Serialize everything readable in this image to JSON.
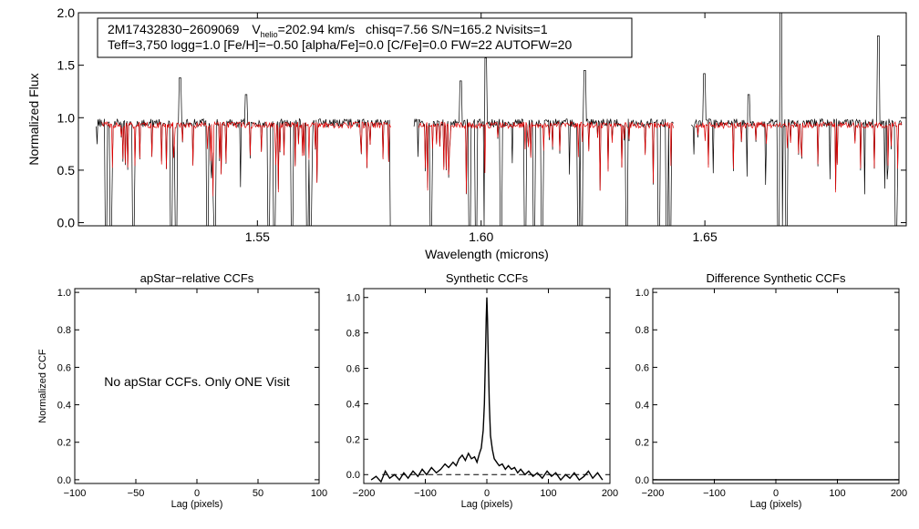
{
  "colors": {
    "axis": "#000000",
    "observed": "#000000",
    "model": "#e00000",
    "reference": "#000000"
  },
  "chart_data": [
    {
      "id": "spectrum",
      "type": "line",
      "title": "",
      "xlabel": "Wavelength (microns)",
      "ylabel": "Normalized Flux",
      "xlim": [
        1.51,
        1.695
      ],
      "ylim": [
        -0.03,
        2.0
      ],
      "xticks": [
        1.55,
        1.6,
        1.65
      ],
      "xtick_labels": [
        "1.55",
        "1.60",
        "1.65"
      ],
      "yticks": [
        0.0,
        0.5,
        1.0,
        1.5,
        2.0
      ],
      "ytick_labels": [
        "0.0",
        "0.5",
        "1.0",
        "1.5",
        "2.0"
      ],
      "info": {
        "star_id": "2M17432830−2609069",
        "vhelio_label": "V",
        "vhelio_sub": "helio",
        "vhelio_value": "=202.94 km/s",
        "stats": "chisq=7.56  S/N=165.2  Nvisits=1",
        "params": "Teff=3,750 logg=1.0 [Fe/H]=−0.50 [alpha/Fe]=0.0 [C/Fe]=0.0 FW=22 AUTOFW=20"
      },
      "chips": [
        [
          1.514,
          1.58
        ],
        [
          1.585,
          1.643
        ],
        [
          1.647,
          1.694
        ]
      ],
      "series": [
        {
          "name": "apStar observed",
          "continuum": 0.95,
          "emission": [
            [
              1.5328,
              1.38
            ],
            [
              1.5475,
              1.22
            ],
            [
              1.5955,
              1.35
            ],
            [
              1.601,
              1.57
            ],
            [
              1.6232,
              1.45
            ],
            [
              1.6498,
              1.42
            ],
            [
              1.6598,
              1.22
            ],
            [
              1.667,
              2.0
            ],
            [
              1.6888,
              1.78
            ]
          ],
          "deep_absorption": [
            1.5135,
            1.5162,
            1.5172,
            1.5222,
            1.5308,
            1.5318,
            1.5388,
            1.5405,
            1.5525,
            1.5538,
            1.5578,
            1.5612,
            1.5618,
            1.5798,
            1.5888,
            1.5975,
            1.5988,
            1.6008,
            1.6045,
            1.6098,
            1.6118,
            1.6136,
            1.6218,
            1.6225,
            1.6232,
            1.6325,
            1.6398,
            1.6415,
            1.6422,
            1.6665,
            1.6672,
            1.6682,
            1.6928
          ]
        },
        {
          "name": "synthetic model",
          "continuum": 0.93
        }
      ]
    },
    {
      "id": "apstar-ccf",
      "type": "line",
      "title": "apStar−relative CCFs",
      "xlabel": "Lag (pixels)",
      "ylabel": "Normalized CCF",
      "xlim": [
        -100,
        100
      ],
      "ylim": [
        -0.02,
        1.02
      ],
      "xticks": [
        -100,
        -50,
        0,
        50,
        100
      ],
      "xtick_labels": [
        "−100",
        "−50",
        "0",
        "50",
        "100"
      ],
      "yticks": [
        0.0,
        0.2,
        0.4,
        0.6,
        0.8,
        1.0
      ],
      "ytick_labels": [
        "0.0",
        "0.2",
        "0.4",
        "0.6",
        "0.8",
        "1.0"
      ],
      "annotation": "No apStar CCFs.  Only ONE Visit",
      "series": []
    },
    {
      "id": "synthetic-ccf",
      "type": "line",
      "title": "Synthetic CCFs",
      "xlabel": "Lag (pixels)",
      "ylabel": "",
      "xlim": [
        -200,
        200
      ],
      "ylim": [
        -0.05,
        1.05
      ],
      "xticks": [
        -200,
        -100,
        0,
        100,
        200
      ],
      "xtick_labels": [
        "−200",
        "−100",
        "0",
        "100",
        "200"
      ],
      "yticks": [
        0.0,
        0.2,
        0.4,
        0.6,
        0.8,
        1.0
      ],
      "ytick_labels": [
        "0.0",
        "0.2",
        "0.4",
        "0.6",
        "0.8",
        "1.0"
      ],
      "reference_line": {
        "y": 0.0,
        "from": -170,
        "to": 170,
        "style": "dashed"
      },
      "series": [
        {
          "name": "synthetic CCF",
          "x": [
            -188,
            -180,
            -172,
            -165,
            -158,
            -150,
            -142,
            -135,
            -128,
            -120,
            -112,
            -105,
            -98,
            -90,
            -82,
            -75,
            -68,
            -62,
            -55,
            -50,
            -45,
            -40,
            -35,
            -30,
            -25,
            -20,
            -16,
            -12,
            -9,
            -6,
            -4,
            -2,
            -1,
            0,
            1,
            2,
            4,
            6,
            9,
            12,
            16,
            20,
            25,
            30,
            35,
            40,
            45,
            50,
            55,
            62,
            68,
            75,
            82,
            90,
            98,
            105,
            112,
            120,
            128,
            135,
            142,
            150,
            158,
            165,
            172,
            180,
            188
          ],
          "y": [
            -0.03,
            -0.01,
            -0.04,
            0.02,
            -0.02,
            0.0,
            -0.03,
            0.01,
            -0.02,
            0.02,
            -0.01,
            0.03,
            0.0,
            0.04,
            0.01,
            0.03,
            0.06,
            0.04,
            0.07,
            0.05,
            0.09,
            0.11,
            0.08,
            0.12,
            0.09,
            0.1,
            0.07,
            0.12,
            0.15,
            0.25,
            0.4,
            0.7,
            0.88,
            1.0,
            0.88,
            0.7,
            0.4,
            0.22,
            0.14,
            0.09,
            0.07,
            0.05,
            0.06,
            0.03,
            0.05,
            0.03,
            0.04,
            0.01,
            0.03,
            0.0,
            0.02,
            -0.01,
            0.01,
            -0.02,
            0.02,
            -0.01,
            0.01,
            -0.03,
            0.0,
            -0.02,
            0.01,
            -0.03,
            -0.01,
            0.02,
            -0.02,
            0.01,
            -0.03
          ]
        }
      ]
    },
    {
      "id": "difference-ccf",
      "type": "line",
      "title": "Difference Synthetic CCFs",
      "xlabel": "Lag (pixels)",
      "ylabel": "",
      "xlim": [
        -200,
        200
      ],
      "ylim": [
        -0.02,
        1.02
      ],
      "xticks": [
        -200,
        -100,
        0,
        100,
        200
      ],
      "xtick_labels": [
        "−200",
        "−100",
        "0",
        "100",
        "200"
      ],
      "yticks": [
        0.0,
        0.2,
        0.4,
        0.6,
        0.8,
        1.0
      ],
      "ytick_labels": [
        "0.0",
        "0.2",
        "0.4",
        "0.6",
        "0.8",
        "1.0"
      ],
      "series": [
        {
          "name": "difference CCF",
          "x": [
            -200,
            200
          ],
          "y": [
            0.0,
            0.0
          ]
        }
      ]
    }
  ]
}
